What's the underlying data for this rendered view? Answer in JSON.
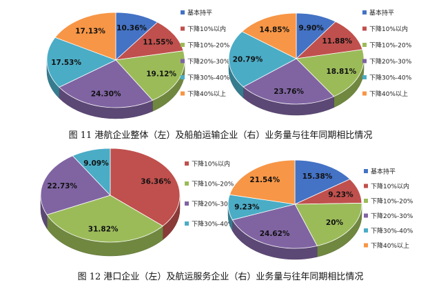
{
  "captions": {
    "fig11": "图 11 港航企业整体（左）及船舶运输企业（右）业务量与往年同期相比情况",
    "fig12": "图 12 港口企业（左）及航运服务企业（右）业务量与往年同期相比情况"
  },
  "chart_data": [
    {
      "type": "pie",
      "labels": [
        "基本持平",
        "下降10%以内",
        "下降10%-20%",
        "下降20%-30%",
        "下降30%-40%",
        "下降40%以上"
      ],
      "values": [
        10.36,
        11.55,
        19.12,
        24.3,
        17.53,
        17.13
      ],
      "data_labels": [
        "10.36%",
        "11.55%",
        "19.12%",
        "24.30%",
        "17.53%",
        "17.13%"
      ],
      "colors": [
        "#4472C4",
        "#C0504D",
        "#9BBB59",
        "#8064A2",
        "#4BACC6",
        "#F79646"
      ],
      "legend_position": "right"
    },
    {
      "type": "pie",
      "labels": [
        "基本持平",
        "下降10%以内",
        "下降10%-20%",
        "下降20%-30%",
        "下降30%-40%",
        "下降40%以上"
      ],
      "values": [
        9.9,
        11.88,
        18.81,
        23.76,
        20.79,
        14.85
      ],
      "data_labels": [
        "9.90%",
        "11.88%",
        "18.81%",
        "23.76%",
        "20.79%",
        "14.85%"
      ],
      "colors": [
        "#4472C4",
        "#C0504D",
        "#9BBB59",
        "#8064A2",
        "#4BACC6",
        "#F79646"
      ],
      "legend_position": "right"
    },
    {
      "type": "pie",
      "labels": [
        "下降10%以内",
        "下降10%-20%",
        "下降20%-30%",
        "下降30%-40%"
      ],
      "values": [
        36.36,
        31.82,
        22.73,
        9.09
      ],
      "data_labels": [
        "36.36%",
        "31.82%",
        "22.73%",
        "9.09%"
      ],
      "colors": [
        "#C0504D",
        "#9BBB59",
        "#8064A2",
        "#4BACC6"
      ],
      "legend_position": "right"
    },
    {
      "type": "pie",
      "labels": [
        "基本持平",
        "下降10%以内",
        "下降10%-20%",
        "下降20%-30%",
        "下降30%-40%",
        "下降40%以上"
      ],
      "values": [
        15.38,
        9.23,
        20,
        24.62,
        9.23,
        21.54
      ],
      "data_labels": [
        "15.38%",
        "9.23%",
        "20%",
        "24.62%",
        "9.23%",
        "21.54%"
      ],
      "colors": [
        "#4472C4",
        "#C0504D",
        "#9BBB59",
        "#8064A2",
        "#4BACC6",
        "#F79646"
      ],
      "legend_position": "right"
    }
  ]
}
